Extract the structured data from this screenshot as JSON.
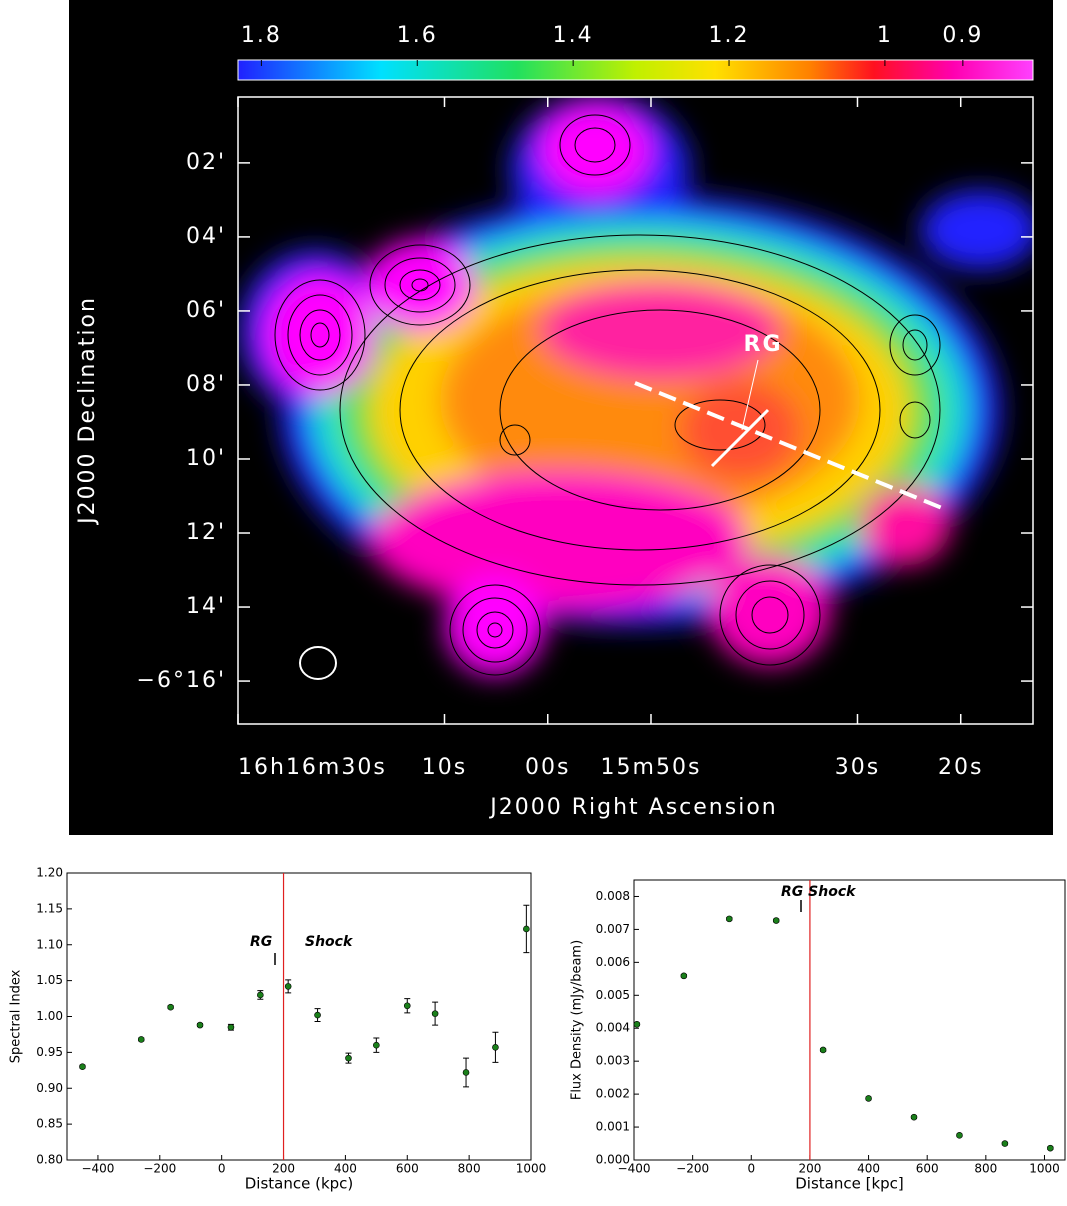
{
  "chart_data": [
    {
      "type": "map",
      "colorbar_ticks": [
        1.8,
        1.6,
        1.4,
        1.2,
        1,
        0.9
      ],
      "colorbar_lim": [
        1.83,
        0.81
      ],
      "xlabel": "J2000 Right Ascension",
      "ylabel": "J2000 Declination",
      "xlim": [
        58590,
        58513
      ],
      "ylim": [
        -377.16,
        -360.22
      ],
      "xticks": [
        {
          "value": 58590,
          "label": "16h16m30s"
        },
        {
          "value": 58570,
          "label": "10s"
        },
        {
          "value": 58560,
          "label": "00s"
        },
        {
          "value": 58550,
          "label": "15m50s"
        },
        {
          "value": 58530,
          "label": "30s"
        },
        {
          "value": 58520,
          "label": "20s"
        }
      ],
      "yticks": [
        {
          "value": -362,
          "label": "02'"
        },
        {
          "value": -364,
          "label": "04'"
        },
        {
          "value": -366,
          "label": "06'"
        },
        {
          "value": -368,
          "label": "08'"
        },
        {
          "value": -370,
          "label": "10'"
        },
        {
          "value": -372,
          "label": "12'"
        },
        {
          "value": -374,
          "label": "14'"
        },
        {
          "value": -376,
          "label": "−6°16'"
        }
      ],
      "annotations": [
        "RG"
      ]
    },
    {
      "type": "errorbar",
      "xlabel": "Distance (kpc)",
      "ylabel": "Spectral Index",
      "x": [
        -450,
        -260,
        -165,
        -70,
        30,
        125,
        215,
        310,
        410,
        500,
        600,
        690,
        790,
        885,
        985
      ],
      "series": [
        {
          "color": "#1a7f1a",
          "values": [
            0.93,
            0.968,
            1.013,
            0.988,
            0.985,
            1.03,
            1.042,
            1.002,
            0.942,
            0.96,
            1.015,
            1.004,
            0.922,
            0.957,
            1.122
          ],
          "errors": [
            0.002,
            0.002,
            0.002,
            0.002,
            0.004,
            0.006,
            0.009,
            0.009,
            0.007,
            0.01,
            0.01,
            0.016,
            0.02,
            0.021,
            0.033
          ]
        }
      ],
      "xlim": [
        -500,
        1000
      ],
      "ylim": [
        0.8,
        1.2
      ],
      "xticks": [
        {
          "value": -400,
          "label": "−400"
        },
        {
          "value": -200,
          "label": "−200"
        },
        0,
        200,
        400,
        600,
        800,
        1000
      ],
      "yticks": [
        {
          "value": 0.8,
          "label": "0.80"
        },
        0.85,
        {
          "value": 0.9,
          "label": "0.90"
        },
        0.95,
        {
          "value": 1,
          "label": "1.00"
        },
        1.05,
        {
          "value": 1.1,
          "label": "1.10"
        },
        1.15,
        {
          "value": 1.2,
          "label": "1.20"
        }
      ],
      "vline": 200,
      "vline_color": "#e02020",
      "annotations": [
        "RG",
        "Shock"
      ]
    },
    {
      "type": "errorbar",
      "xlabel": "Distance [kpc]",
      "ylabel": "Flux Density (mJy/beam)",
      "x": [
        -390,
        -230,
        -75,
        85,
        245,
        400,
        555,
        710,
        865,
        1020
      ],
      "series": [
        {
          "color": "#1a7f1a",
          "values": [
            0.00412,
            0.00559,
            0.00732,
            0.00727,
            0.00334,
            0.00187,
            0.0013,
            0.00075,
            0.0005,
            0.00036
          ],
          "errors": [
            4e-05,
            4e-05,
            4e-05,
            4e-05,
            4e-05,
            4e-05,
            4e-05,
            4e-05,
            4e-05,
            4e-05
          ]
        }
      ],
      "xlim": [
        -400,
        1070
      ],
      "ylim": [
        0,
        0.0085
      ],
      "xticks": [
        {
          "value": -400,
          "label": "−400"
        },
        {
          "value": -200,
          "label": "−200"
        },
        0,
        200,
        400,
        600,
        800,
        1000
      ],
      "yticks": [
        {
          "value": 0,
          "label": "0.000"
        },
        0.001,
        0.002,
        0.003,
        0.004,
        0.005,
        0.006,
        0.007,
        0.008
      ],
      "vline": 200,
      "vline_color": "#e02020",
      "annotations": [
        "RG Shock"
      ]
    }
  ]
}
